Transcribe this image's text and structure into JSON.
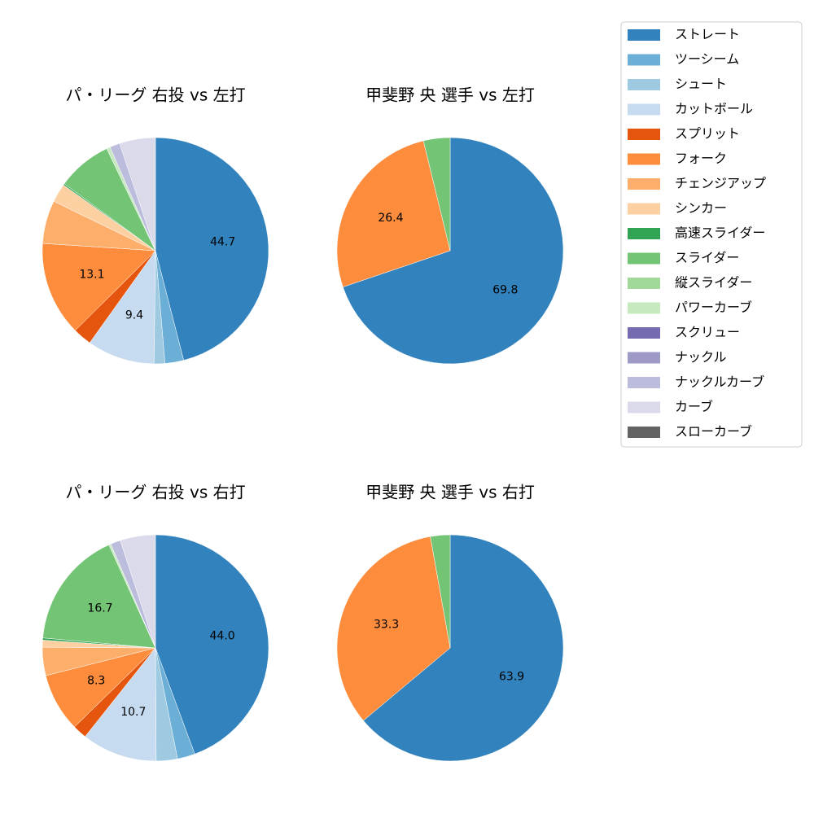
{
  "legend": {
    "items": [
      {
        "label": "ストレート",
        "color": "#3182bd"
      },
      {
        "label": "ツーシーム",
        "color": "#6baed6"
      },
      {
        "label": "シュート",
        "color": "#9ecae1"
      },
      {
        "label": "カットボール",
        "color": "#c6dbef"
      },
      {
        "label": "スプリット",
        "color": "#e6550d"
      },
      {
        "label": "フォーク",
        "color": "#fd8d3c"
      },
      {
        "label": "チェンジアップ",
        "color": "#fdae6b"
      },
      {
        "label": "シンカー",
        "color": "#fdd0a2"
      },
      {
        "label": "高速スライダー",
        "color": "#31a354"
      },
      {
        "label": "スライダー",
        "color": "#74c476"
      },
      {
        "label": "縦スライダー",
        "color": "#a1d99b"
      },
      {
        "label": "パワーカーブ",
        "color": "#c7e9c0"
      },
      {
        "label": "スクリュー",
        "color": "#756bb1"
      },
      {
        "label": "ナックル",
        "color": "#9e9ac8"
      },
      {
        "label": "ナックルカーブ",
        "color": "#bcbddc"
      },
      {
        "label": "カーブ",
        "color": "#dadaeb"
      },
      {
        "label": "スローカーブ",
        "color": "#636363"
      }
    ]
  },
  "chart_data": [
    {
      "type": "pie",
      "title": "パ・リーグ 右投 vs 左打",
      "slices": [
        {
          "category": "ストレート",
          "value": 44.7,
          "label": "44.7"
        },
        {
          "category": "ツーシーム",
          "value": 2.6,
          "label": ""
        },
        {
          "category": "シュート",
          "value": 1.5,
          "label": ""
        },
        {
          "category": "カットボール",
          "value": 9.4,
          "label": "9.4"
        },
        {
          "category": "スプリット",
          "value": 2.6,
          "label": ""
        },
        {
          "category": "フォーク",
          "value": 13.1,
          "label": "13.1"
        },
        {
          "category": "チェンジアップ",
          "value": 6.0,
          "label": ""
        },
        {
          "category": "シンカー",
          "value": 2.6,
          "label": ""
        },
        {
          "category": "高速スライダー",
          "value": 0.2,
          "label": ""
        },
        {
          "category": "スライダー",
          "value": 7.6,
          "label": ""
        },
        {
          "category": "パワーカーブ",
          "value": 0.5,
          "label": ""
        },
        {
          "category": "ナックルカーブ",
          "value": 1.4,
          "label": ""
        },
        {
          "category": "カーブ",
          "value": 5.0,
          "label": ""
        }
      ]
    },
    {
      "type": "pie",
      "title": "甲斐野 央 選手 vs 左打",
      "slices": [
        {
          "category": "ストレート",
          "value": 69.8,
          "label": "69.8"
        },
        {
          "category": "フォーク",
          "value": 26.4,
          "label": "26.4"
        },
        {
          "category": "スライダー",
          "value": 3.8,
          "label": ""
        }
      ]
    },
    {
      "type": "pie",
      "title": "パ・リーグ 右投 vs 右打",
      "slices": [
        {
          "category": "ストレート",
          "value": 44.0,
          "label": "44.0"
        },
        {
          "category": "ツーシーム",
          "value": 2.5,
          "label": ""
        },
        {
          "category": "シュート",
          "value": 3.0,
          "label": ""
        },
        {
          "category": "カットボール",
          "value": 10.7,
          "label": "10.7"
        },
        {
          "category": "スプリット",
          "value": 2.0,
          "label": ""
        },
        {
          "category": "フォーク",
          "value": 8.3,
          "label": "8.3"
        },
        {
          "category": "チェンジアップ",
          "value": 4.0,
          "label": ""
        },
        {
          "category": "シンカー",
          "value": 1.0,
          "label": ""
        },
        {
          "category": "高速スライダー",
          "value": 0.3,
          "label": ""
        },
        {
          "category": "スライダー",
          "value": 16.7,
          "label": "16.7"
        },
        {
          "category": "パワーカーブ",
          "value": 0.3,
          "label": ""
        },
        {
          "category": "ナックルカーブ",
          "value": 1.4,
          "label": ""
        },
        {
          "category": "カーブ",
          "value": 5.0,
          "label": ""
        }
      ]
    },
    {
      "type": "pie",
      "title": "甲斐野 央 選手 vs 右打",
      "slices": [
        {
          "category": "ストレート",
          "value": 63.9,
          "label": "63.9"
        },
        {
          "category": "フォーク",
          "value": 33.3,
          "label": "33.3"
        },
        {
          "category": "スライダー",
          "value": 2.8,
          "label": ""
        }
      ]
    }
  ]
}
